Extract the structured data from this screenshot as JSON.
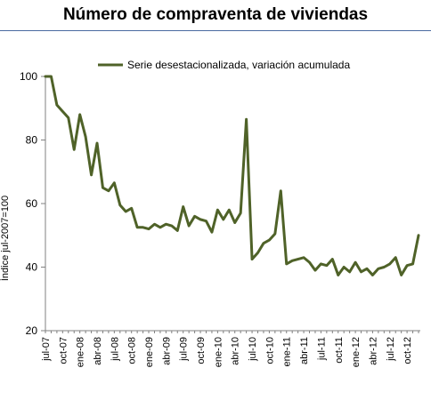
{
  "chart_data": {
    "type": "line",
    "title": "Número de compraventa de viviendas",
    "ylabel": "Índice jul-2007=100",
    "xlabel": "",
    "ylim": [
      20,
      100
    ],
    "yticks": [
      20,
      40,
      60,
      80,
      100
    ],
    "grid": false,
    "legend_position": "top",
    "x": [
      "jul-07",
      "ago-07",
      "sep-07",
      "oct-07",
      "nov-07",
      "dic-07",
      "ene-08",
      "feb-08",
      "mar-08",
      "abr-08",
      "may-08",
      "jun-08",
      "jul-08",
      "ago-08",
      "sep-08",
      "oct-08",
      "nov-08",
      "dic-08",
      "ene-09",
      "feb-09",
      "mar-09",
      "abr-09",
      "may-09",
      "jun-09",
      "jul-09",
      "ago-09",
      "sep-09",
      "oct-09",
      "nov-09",
      "dic-09",
      "ene-10",
      "feb-10",
      "mar-10",
      "abr-10",
      "may-10",
      "jun-10",
      "jul-10",
      "ago-10",
      "sep-10",
      "oct-10",
      "nov-10",
      "dic-10",
      "ene-11",
      "feb-11",
      "mar-11",
      "abr-11",
      "may-11",
      "jun-11",
      "jul-11",
      "ago-11",
      "sep-11",
      "oct-11",
      "nov-11",
      "dic-11",
      "ene-12",
      "feb-12",
      "mar-12",
      "abr-12",
      "may-12",
      "jun-12",
      "jul-12",
      "ago-12",
      "sep-12",
      "oct-12",
      "nov-12",
      "dic-12"
    ],
    "xtick_labels": [
      {
        "index": 0,
        "label": "jul-07"
      },
      {
        "index": 3,
        "label": "oct-07"
      },
      {
        "index": 6,
        "label": "ene-08"
      },
      {
        "index": 9,
        "label": "abr-08"
      },
      {
        "index": 12,
        "label": "jul-08"
      },
      {
        "index": 15,
        "label": "oct-08"
      },
      {
        "index": 18,
        "label": "ene-09"
      },
      {
        "index": 21,
        "label": "abr-09"
      },
      {
        "index": 24,
        "label": "jul-09"
      },
      {
        "index": 27,
        "label": "oct-09"
      },
      {
        "index": 30,
        "label": "ene-10"
      },
      {
        "index": 33,
        "label": "abr-10"
      },
      {
        "index": 36,
        "label": "jul-10"
      },
      {
        "index": 39,
        "label": "oct-10"
      },
      {
        "index": 42,
        "label": "ene-11"
      },
      {
        "index": 45,
        "label": "abr-11"
      },
      {
        "index": 48,
        "label": "jul-11"
      },
      {
        "index": 51,
        "label": "oct-11"
      },
      {
        "index": 54,
        "label": "ene-12"
      },
      {
        "index": 57,
        "label": "abr-12"
      },
      {
        "index": 60,
        "label": "jul-12"
      },
      {
        "index": 63,
        "label": "oct-12"
      }
    ],
    "series": [
      {
        "name": "Serie desestacionalizada, variación acumulada",
        "color": "#4f6228",
        "values": [
          100,
          100,
          91,
          89,
          87,
          77,
          88,
          81,
          69,
          79,
          65,
          64,
          66.5,
          59.5,
          57.5,
          58.5,
          52.5,
          52.5,
          52,
          53.5,
          52.5,
          53.5,
          53,
          51.5,
          59,
          53,
          56,
          55,
          54.5,
          51,
          58,
          55,
          58,
          54,
          57,
          86.5,
          42.5,
          44.5,
          47.5,
          48.5,
          50.5,
          64,
          41,
          42,
          42.5,
          43,
          41.5,
          39,
          41,
          40.5,
          42.5,
          37.5,
          40,
          38.5,
          41.5,
          38.5,
          39.5,
          37.5,
          39.5,
          40,
          41,
          43,
          37.5,
          40.5,
          41,
          50
        ]
      }
    ]
  }
}
